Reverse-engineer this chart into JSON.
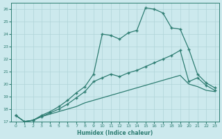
{
  "xlabel": "Humidex (Indice chaleur)",
  "bg_color": "#cce9ed",
  "line_color": "#2e7d72",
  "grid_color": "#b0d4d8",
  "xlim": [
    -0.5,
    23.5
  ],
  "ylim": [
    17,
    26.5
  ],
  "yticks": [
    17,
    18,
    19,
    20,
    21,
    22,
    23,
    24,
    25,
    26
  ],
  "xticks": [
    0,
    1,
    2,
    3,
    4,
    5,
    6,
    7,
    8,
    9,
    10,
    11,
    12,
    13,
    14,
    15,
    16,
    17,
    18,
    19,
    20,
    21,
    22,
    23
  ],
  "series1_x": [
    0,
    1,
    2,
    3,
    4,
    5,
    6,
    7,
    8,
    9,
    10,
    11,
    12,
    13,
    14,
    15,
    16,
    17,
    18,
    19,
    20,
    21,
    22,
    23
  ],
  "series1_y": [
    17.5,
    17.0,
    17.1,
    17.4,
    17.6,
    17.8,
    18.0,
    18.2,
    18.5,
    18.7,
    18.9,
    19.1,
    19.3,
    19.5,
    19.7,
    19.9,
    20.1,
    20.3,
    20.5,
    20.7,
    20.0,
    19.8,
    19.5,
    19.4
  ],
  "series2_x": [
    0,
    1,
    2,
    3,
    4,
    5,
    6,
    7,
    8,
    9,
    10,
    11,
    12,
    13,
    14,
    15,
    16,
    17,
    18,
    19,
    20,
    21,
    22,
    23
  ],
  "series2_y": [
    17.5,
    17.0,
    17.1,
    17.4,
    17.7,
    18.0,
    18.4,
    18.9,
    19.4,
    20.2,
    20.5,
    20.8,
    20.6,
    20.9,
    21.1,
    21.4,
    21.7,
    22.0,
    22.3,
    22.7,
    20.2,
    20.5,
    19.9,
    19.5
  ],
  "series3_x": [
    0,
    1,
    2,
    3,
    4,
    5,
    6,
    7,
    8,
    9,
    10,
    11,
    12,
    13,
    14,
    15,
    16,
    17,
    18,
    19,
    20,
    21,
    22,
    23
  ],
  "series3_y": [
    17.5,
    17.0,
    17.1,
    17.5,
    17.8,
    18.2,
    18.7,
    19.3,
    19.8,
    20.8,
    24.0,
    23.9,
    23.6,
    24.1,
    24.3,
    26.1,
    26.0,
    25.7,
    24.5,
    24.4,
    22.8,
    20.8,
    20.1,
    19.7
  ],
  "marker": "+",
  "markersize": 3,
  "linewidth": 0.9
}
